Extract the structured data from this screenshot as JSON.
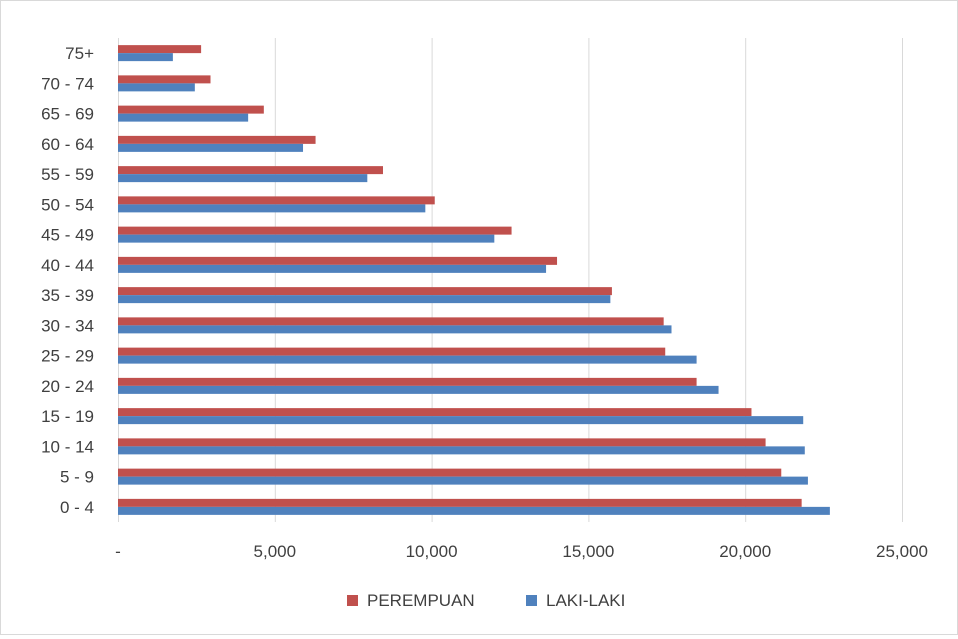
{
  "chart_data": {
    "type": "bar",
    "orientation": "horizontal",
    "categories": [
      "0 - 4",
      "5 - 9",
      "10 - 14",
      "15 - 19",
      "20 - 24",
      "25 - 29",
      "30 - 34",
      "35 - 39",
      "40 - 44",
      "45 - 49",
      "50 - 54",
      "55 - 59",
      "60 - 64",
      "65 - 69",
      "70 - 74",
      "75+"
    ],
    "series": [
      {
        "name": "PEREMPUAN",
        "color": "#c0504d",
        "values": [
          21800,
          21150,
          20650,
          20200,
          18450,
          17450,
          17400,
          15750,
          14000,
          12550,
          10100,
          8450,
          6300,
          4650,
          2950,
          2650
        ]
      },
      {
        "name": "LAKI-LAKI",
        "color": "#4f81bd",
        "values": [
          22700,
          22000,
          21900,
          21850,
          19150,
          18450,
          17650,
          15700,
          13650,
          12000,
          9800,
          7950,
          5900,
          4150,
          2450,
          1750
        ]
      }
    ],
    "xlim": [
      0,
      25000
    ],
    "x_ticks": [
      0,
      5000,
      10000,
      15000,
      20000,
      25000
    ],
    "x_tick_labels": [
      "-",
      "5,000",
      "10,000",
      "15,000",
      "20,000",
      "25,000"
    ],
    "grid": "vertical",
    "legend_position": "bottom",
    "title": "",
    "xlabel": "",
    "ylabel": ""
  }
}
